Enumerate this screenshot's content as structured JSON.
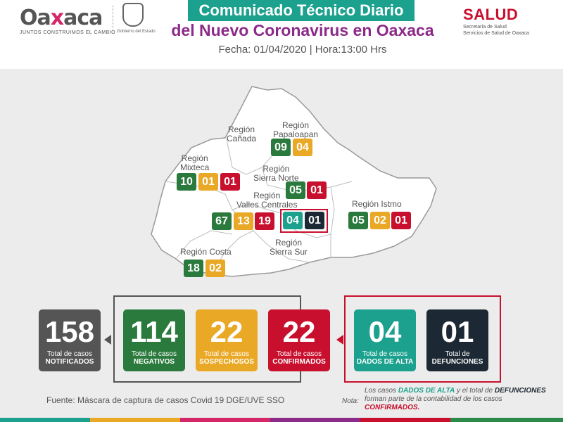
{
  "header": {
    "logo_text_pre": "Oa",
    "logo_text_x": "x",
    "logo_text_post": "aca",
    "logo_slogan": "JUNTOS CONSTRUIMOS EL CAMBIO",
    "seal_caption": "Gobierno del Estado",
    "title_line1": "Comunicado Técnico Diario",
    "title_line2": "del Nuevo Coronavirus en Oaxaca",
    "date_line": "Fecha: 01/04/2020 | Hora:13:00 Hrs",
    "salud_logo": "SALUD",
    "salud_sub1": "Secretaría de Salud",
    "salud_sub2": "Servicios de Salud de Oaxaca"
  },
  "regions": {
    "canada": {
      "line1": "Región",
      "line2": "Cañada"
    },
    "papaloapan": {
      "line1": "Región",
      "line2": "Papaloapan",
      "values": [
        "09",
        "04"
      ]
    },
    "mixteca": {
      "line1": "Región",
      "line2": "Mixteca",
      "values": [
        "10",
        "01",
        "01"
      ]
    },
    "sierra_norte": {
      "line1": "Región",
      "line2": "Sierra Norte",
      "values": [
        "05",
        "01"
      ]
    },
    "valles": {
      "line1": "Región",
      "line2": "Valles Centrales",
      "values": [
        "67",
        "13",
        "19",
        "04",
        "01"
      ]
    },
    "istmo": {
      "line1": "Región Istmo",
      "values": [
        "05",
        "02",
        "01"
      ]
    },
    "sierra_sur": {
      "line1": "Región",
      "line2": "Sierra Sur"
    },
    "costa": {
      "line1": "Región Costa",
      "values": [
        "18",
        "02"
      ]
    }
  },
  "stats": {
    "notificados": {
      "value": "158",
      "label1": "Total de casos",
      "label2": "NOTIFICADOS"
    },
    "negativos": {
      "value": "114",
      "label1": "Total de casos",
      "label2": "NEGATIVOS"
    },
    "sospechosos": {
      "value": "22",
      "label1": "Total de casos",
      "label2": "SOSPECHOSOS"
    },
    "confirmados": {
      "value": "22",
      "label1": "Total de casos",
      "label2": "CONFIRMADOS"
    },
    "alta": {
      "value": "04",
      "label1": "Total de casos",
      "label2": "DADOS DE ALTA"
    },
    "defunciones": {
      "value": "01",
      "label1": "Total de",
      "label2": "DEFUNCIONES"
    }
  },
  "footer": {
    "fuente": "Fuente: Máscara de captura de casos Covid 19 DGE/UVE SSO",
    "nota_label": "Nota:",
    "nota_p1": "Los casos ",
    "nota_alta": "DADOS DE ALTA",
    "nota_p2": " y el total de ",
    "nota_def": "DEFUNCIONES",
    "nota_p3": " forman parte de la contabilidad de los casos ",
    "nota_conf": "CONFIRMADOS."
  },
  "colors": {
    "green": "#2b7a3d",
    "yellow": "#e9a825",
    "red": "#c8102e",
    "teal": "#1ba18d",
    "navy": "#1c2833",
    "gray": "#555555",
    "purple": "#8c2a8a"
  }
}
